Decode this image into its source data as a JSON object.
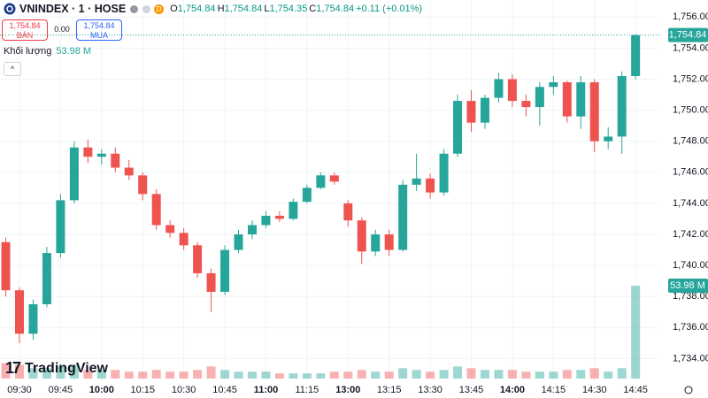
{
  "header": {
    "symbol": "VNINDEX · 1 · HOSE",
    "badge": "D",
    "ohlc": [
      {
        "key": "O",
        "value": "1,754.84"
      },
      {
        "key": "H",
        "value": "1,754.84"
      },
      {
        "key": "L",
        "value": "1,754.35"
      },
      {
        "key": "C",
        "value": "1,754.84"
      }
    ],
    "change": "+0.11 (+0.01%)"
  },
  "trade": {
    "sell_price": "1,754.84",
    "sell_label": "BÁN",
    "spread": "0.00",
    "buy_price": "1,754.84",
    "buy_label": "MUA"
  },
  "volume_legend": {
    "label": "Khối lượng"
  },
  "logo": "TradingView",
  "chart_data": {
    "type": "candlestick",
    "categories": [
      null,
      "09:30",
      null,
      null,
      "09:45",
      null,
      null,
      "10:00",
      null,
      null,
      "10:15",
      null,
      null,
      "10:30",
      null,
      null,
      "10:45",
      null,
      null,
      "11:00",
      null,
      null,
      "11:15",
      null,
      null,
      "13:00",
      null,
      null,
      "13:15",
      null,
      null,
      "13:30",
      null,
      null,
      "13:45",
      null,
      null,
      "14:00",
      null,
      null,
      "14:15",
      null,
      null,
      "14:30",
      null,
      null,
      "14:45"
    ],
    "open": [
      1741.5,
      1738.4,
      1735.6,
      1737.5,
      1740.8,
      1744.2,
      1747.6,
      1747.0,
      1747.2,
      1746.3,
      1745.8,
      1744.6,
      1742.6,
      1742.1,
      1741.3,
      1739.5,
      1738.3,
      1741.0,
      1742.0,
      1742.6,
      1743.2,
      1743.0,
      1744.1,
      1745.0,
      1745.8,
      1744.0,
      1742.9,
      1740.9,
      1742.0,
      1741.0,
      1745.2,
      1745.6,
      1744.7,
      1747.2,
      1750.6,
      1749.2,
      1750.8,
      1752.0,
      1750.6,
      1750.2,
      1751.5,
      1751.8,
      1749.6,
      1751.8,
      1748.0,
      1748.3,
      1752.2
    ],
    "high": [
      1741.8,
      1738.6,
      1737.8,
      1741.2,
      1744.6,
      1748.0,
      1748.1,
      1747.5,
      1747.6,
      1746.8,
      1746.0,
      1744.9,
      1742.9,
      1742.4,
      1741.5,
      1739.8,
      1741.3,
      1742.3,
      1742.9,
      1743.5,
      1743.5,
      1744.3,
      1745.2,
      1746.0,
      1746.0,
      1744.2,
      1743.1,
      1742.3,
      1742.3,
      1745.5,
      1747.2,
      1745.9,
      1747.5,
      1751.0,
      1751.3,
      1751.0,
      1752.4,
      1752.3,
      1751.0,
      1751.8,
      1752.2,
      1751.9,
      1752.2,
      1752.0,
      1748.9,
      1752.5,
      1754.9
    ],
    "low": [
      1738.0,
      1735.0,
      1735.2,
      1737.3,
      1740.5,
      1744.0,
      1746.6,
      1746.5,
      1746.0,
      1745.5,
      1744.2,
      1742.3,
      1741.8,
      1741.0,
      1739.2,
      1737.0,
      1738.1,
      1740.8,
      1741.7,
      1742.4,
      1742.8,
      1742.9,
      1744.0,
      1744.9,
      1745.2,
      1742.5,
      1740.1,
      1740.6,
      1740.6,
      1740.9,
      1744.8,
      1744.3,
      1744.5,
      1747.0,
      1748.6,
      1748.8,
      1750.5,
      1750.2,
      1749.6,
      1749.0,
      1751.0,
      1749.2,
      1748.8,
      1747.3,
      1747.5,
      1747.2,
      1752.0
    ],
    "close": [
      1738.4,
      1735.6,
      1737.5,
      1740.8,
      1744.2,
      1747.6,
      1747.0,
      1747.2,
      1746.3,
      1745.8,
      1744.6,
      1742.6,
      1742.1,
      1741.3,
      1739.5,
      1738.3,
      1741.0,
      1742.0,
      1742.6,
      1743.2,
      1743.0,
      1744.1,
      1745.0,
      1745.8,
      1745.4,
      1742.9,
      1740.9,
      1742.0,
      1741.0,
      1745.2,
      1745.6,
      1744.7,
      1747.2,
      1750.6,
      1749.2,
      1750.8,
      1752.0,
      1750.6,
      1750.2,
      1751.5,
      1751.8,
      1749.6,
      1751.8,
      1748.0,
      1748.3,
      1752.2,
      1754.84
    ],
    "volume": [
      9,
      8,
      6,
      6,
      7,
      8,
      5,
      5,
      5,
      4,
      4,
      5,
      4,
      4,
      5,
      7,
      5,
      4,
      4,
      4,
      3,
      3,
      3,
      3,
      4,
      4,
      5,
      4,
      4,
      6,
      5,
      4,
      5,
      7,
      6,
      5,
      5,
      5,
      4,
      4,
      4,
      5,
      5,
      6,
      4,
      6,
      53.98
    ],
    "price_label": "1,754.84",
    "volume_label": "53.98 M",
    "up_color": "#26a69a",
    "down_color": "#ef5350",
    "ylim": [
      1732.6,
      1757.1
    ],
    "yticks": [
      {
        "value": 1734,
        "label": "1,734.00"
      },
      {
        "value": 1736,
        "label": "1,736.00"
      },
      {
        "value": 1738,
        "label": "1,738.00"
      },
      {
        "value": 1740,
        "label": "1,740.00"
      },
      {
        "value": 1742,
        "label": "1,742.00"
      },
      {
        "value": 1744,
        "label": "1,744.00"
      },
      {
        "value": 1746,
        "label": "1,746.00"
      },
      {
        "value": 1748,
        "label": "1,748.00"
      },
      {
        "value": 1750,
        "label": "1,750.00"
      },
      {
        "value": 1752,
        "label": "1,752.00"
      },
      {
        "value": 1754,
        "label": "1,754.00"
      },
      {
        "value": 1756,
        "label": "1,756.00"
      }
    ],
    "grid": true
  }
}
